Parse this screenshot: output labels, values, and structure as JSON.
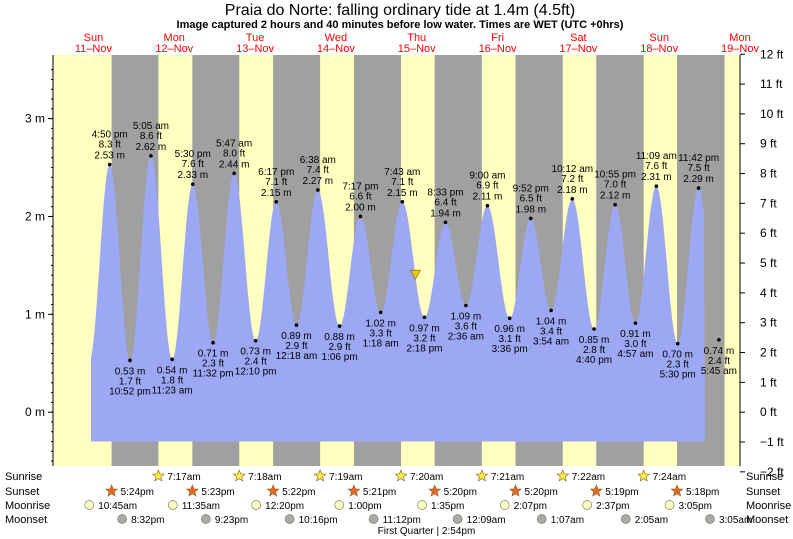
{
  "page": {
    "title": "Praia do Norte: falling  ordinary tide at 1.4m (4.5ft)",
    "subtitle": "Image captured 2 hours and 40 minutes before low water. Times are WET (UTC +0hrs)"
  },
  "chart_data": {
    "type": "area",
    "title": "Praia do Norte: falling  ordinary tide at 1.4m (4.5ft)",
    "time_axis": {
      "start": "2018-11-11T00:00",
      "end": "2018-11-19T12:00"
    },
    "left_axis": {
      "unit": "m",
      "ylim": [
        -0.55,
        3.65
      ],
      "ticks": [
        {
          "v": 0,
          "label": "0 m"
        },
        {
          "v": 1,
          "label": "1 m"
        },
        {
          "v": 2,
          "label": "2 m"
        },
        {
          "v": 3,
          "label": "3 m"
        }
      ]
    },
    "right_axis": {
      "unit": "ft",
      "ticks": [
        {
          "v": -2,
          "label": "−2 ft"
        },
        {
          "v": -1,
          "label": "−1 ft"
        },
        {
          "v": 0,
          "label": "0 ft"
        },
        {
          "v": 1,
          "label": "1 ft"
        },
        {
          "v": 2,
          "label": "2 ft"
        },
        {
          "v": 3,
          "label": "3 ft"
        },
        {
          "v": 4,
          "label": "4 ft"
        },
        {
          "v": 5,
          "label": "5 ft"
        },
        {
          "v": 6,
          "label": "6 ft"
        },
        {
          "v": 7,
          "label": "7 ft"
        },
        {
          "v": 8,
          "label": "8 ft"
        },
        {
          "v": 9,
          "label": "9 ft"
        },
        {
          "v": 10,
          "label": "10 ft"
        },
        {
          "v": 11,
          "label": "11 ft"
        },
        {
          "v": 12,
          "label": "12 ft"
        }
      ]
    },
    "days": [
      {
        "dow": "Sun",
        "date": "11–Nov",
        "t": "2018-11-11T12:00"
      },
      {
        "dow": "Mon",
        "date": "12–Nov",
        "t": "2018-11-12T12:00"
      },
      {
        "dow": "Tue",
        "date": "13–Nov",
        "t": "2018-11-13T12:00"
      },
      {
        "dow": "Wed",
        "date": "14–Nov",
        "t": "2018-11-14T12:00"
      },
      {
        "dow": "Thu",
        "date": "15–Nov",
        "t": "2018-11-15T12:00"
      },
      {
        "dow": "Fri",
        "date": "16–Nov",
        "t": "2018-11-16T12:00"
      },
      {
        "dow": "Sat",
        "date": "17–Nov",
        "t": "2018-11-17T12:00"
      },
      {
        "dow": "Sun",
        "date": "18–Nov",
        "t": "2018-11-18T12:00"
      },
      {
        "dow": "Mon",
        "date": "19–Nov",
        "t": "2018-11-19T12:00"
      }
    ],
    "nights": [
      {
        "start": "2018-11-11T17:24",
        "end": "2018-11-12T07:17"
      },
      {
        "start": "2018-11-12T17:23",
        "end": "2018-11-13T07:18"
      },
      {
        "start": "2018-11-13T17:22",
        "end": "2018-11-14T07:19"
      },
      {
        "start": "2018-11-14T17:21",
        "end": "2018-11-15T07:20"
      },
      {
        "start": "2018-11-15T17:20",
        "end": "2018-11-16T07:21"
      },
      {
        "start": "2018-11-16T17:20",
        "end": "2018-11-17T07:22"
      },
      {
        "start": "2018-11-17T17:19",
        "end": "2018-11-18T07:24"
      },
      {
        "start": "2018-11-18T17:18",
        "end": "2018-11-19T07:25"
      }
    ],
    "tides": [
      {
        "type": "high",
        "t": "2018-11-11T16:50",
        "m": 2.53,
        "time": "4:50 pm",
        "ft": "8.3 ft",
        "mlabel": "2.53 m"
      },
      {
        "type": "low",
        "t": "2018-11-11T22:52",
        "m": 0.53,
        "time": "10:52 pm",
        "ft": "1.7 ft",
        "mlabel": "0.53 m"
      },
      {
        "type": "high",
        "t": "2018-11-12T05:05",
        "m": 2.62,
        "time": "5:05 am",
        "ft": "8.6 ft",
        "mlabel": "2.62 m"
      },
      {
        "type": "low",
        "t": "2018-11-12T11:23",
        "m": 0.54,
        "time": "11:23 am",
        "ft": "1.8 ft",
        "mlabel": "0.54 m"
      },
      {
        "type": "high",
        "t": "2018-11-12T17:30",
        "m": 2.33,
        "time": "5:30 pm",
        "ft": "7.6 ft",
        "mlabel": "2.33 m"
      },
      {
        "type": "low",
        "t": "2018-11-12T23:32",
        "m": 0.71,
        "time": "11:32 pm",
        "ft": "2.3 ft",
        "mlabel": "0.71 m"
      },
      {
        "type": "high",
        "t": "2018-11-13T05:47",
        "m": 2.44,
        "time": "5:47 am",
        "ft": "8.0 ft",
        "mlabel": "2.44 m"
      },
      {
        "type": "low",
        "t": "2018-11-13T12:10",
        "m": 0.73,
        "time": "12:10 pm",
        "ft": "2.4 ft",
        "mlabel": "0.73 m"
      },
      {
        "type": "high",
        "t": "2018-11-13T18:17",
        "m": 2.15,
        "time": "6:17 pm",
        "ft": "7.1 ft",
        "mlabel": "2.15 m"
      },
      {
        "type": "low",
        "t": "2018-11-14T00:18",
        "m": 0.89,
        "time": "12:18 am",
        "ft": "2.9 ft",
        "mlabel": "0.89 m"
      },
      {
        "type": "high",
        "t": "2018-11-14T06:38",
        "m": 2.27,
        "time": "6:38 am",
        "ft": "7.4 ft",
        "mlabel": "2.27 m"
      },
      {
        "type": "low",
        "t": "2018-11-14T13:06",
        "m": 0.88,
        "time": "1:06 pm",
        "ft": "2.9 ft",
        "mlabel": "0.88 m"
      },
      {
        "type": "high",
        "t": "2018-11-14T19:17",
        "m": 2.0,
        "time": "7:17 pm",
        "ft": "6.6 ft",
        "mlabel": "2.00 m"
      },
      {
        "type": "low",
        "t": "2018-11-15T01:18",
        "m": 1.02,
        "time": "1:18 am",
        "ft": "3.3 ft",
        "mlabel": "1.02 m"
      },
      {
        "type": "high",
        "t": "2018-11-15T07:43",
        "m": 2.15,
        "time": "7:43 am",
        "ft": "7.1 ft",
        "mlabel": "2.15 m"
      },
      {
        "type": "low",
        "t": "2018-11-15T14:18",
        "m": 0.97,
        "time": "2:18 pm",
        "ft": "3.2 ft",
        "mlabel": "0.97 m"
      },
      {
        "type": "high",
        "t": "2018-11-15T20:33",
        "m": 1.94,
        "time": "8:33 pm",
        "ft": "6.4 ft",
        "mlabel": "1.94 m"
      },
      {
        "type": "low",
        "t": "2018-11-16T02:36",
        "m": 1.09,
        "time": "2:36 am",
        "ft": "3.6 ft",
        "mlabel": "1.09 m"
      },
      {
        "type": "high",
        "t": "2018-11-16T09:00",
        "m": 2.11,
        "time": "9:00 am",
        "ft": "6.9 ft",
        "mlabel": "2.11 m"
      },
      {
        "type": "low",
        "t": "2018-11-16T15:36",
        "m": 0.96,
        "time": "3:36 pm",
        "ft": "3.1 ft",
        "mlabel": "0.96 m"
      },
      {
        "type": "high",
        "t": "2018-11-16T21:52",
        "m": 1.98,
        "time": "9:52 pm",
        "ft": "6.5 ft",
        "mlabel": "1.98 m"
      },
      {
        "type": "low",
        "t": "2018-11-17T03:54",
        "m": 1.04,
        "time": "3:54 am",
        "ft": "3.4 ft",
        "mlabel": "1.04 m"
      },
      {
        "type": "high",
        "t": "2018-11-17T10:12",
        "m": 2.18,
        "time": "10:12 am",
        "ft": "7.2 ft",
        "mlabel": "2.18 m"
      },
      {
        "type": "low",
        "t": "2018-11-17T16:40",
        "m": 0.85,
        "time": "4:40 pm",
        "ft": "2.8 ft",
        "mlabel": "0.85 m"
      },
      {
        "type": "high",
        "t": "2018-11-17T22:55",
        "m": 2.12,
        "time": "10:55 pm",
        "ft": "7.0 ft",
        "mlabel": "2.12 m"
      },
      {
        "type": "low",
        "t": "2018-11-18T04:57",
        "m": 0.91,
        "time": "4:57 am",
        "ft": "3.0 ft",
        "mlabel": "0.91 m"
      },
      {
        "type": "high",
        "t": "2018-11-18T11:09",
        "m": 2.31,
        "time": "11:09 am",
        "ft": "7.6 ft",
        "mlabel": "2.31 m"
      },
      {
        "type": "low",
        "t": "2018-11-18T17:30",
        "m": 0.7,
        "time": "5:30 pm",
        "ft": "2.3 ft",
        "mlabel": "0.70 m"
      },
      {
        "type": "high",
        "t": "2018-11-18T23:42",
        "m": 2.29,
        "time": "11:42 pm",
        "ft": "7.5 ft",
        "mlabel": "2.29 m"
      },
      {
        "type": "low",
        "t": "2018-11-19T05:45",
        "m": 0.74,
        "time": "5:45 am",
        "ft": "2.4 ft",
        "mlabel": "0.74 m"
      }
    ],
    "current": {
      "t": "2018-11-15T11:38",
      "m": 1.4
    },
    "astro_rows": {
      "labels": [
        "Sunrise",
        "Sunset",
        "Moonrise",
        "Moonset"
      ],
      "sunrise": [
        {
          "t": "2018-11-12T07:17",
          "label": "7:17am"
        },
        {
          "t": "2018-11-13T07:18",
          "label": "7:18am"
        },
        {
          "t": "2018-11-14T07:19",
          "label": "7:19am"
        },
        {
          "t": "2018-11-15T07:20",
          "label": "7:20am"
        },
        {
          "t": "2018-11-16T07:21",
          "label": "7:21am"
        },
        {
          "t": "2018-11-17T07:22",
          "label": "7:22am"
        },
        {
          "t": "2018-11-18T07:24",
          "label": "7:24am"
        }
      ],
      "sunset": [
        {
          "t": "2018-11-11T17:24",
          "label": "5:24pm"
        },
        {
          "t": "2018-11-12T17:23",
          "label": "5:23pm"
        },
        {
          "t": "2018-11-13T17:22",
          "label": "5:22pm"
        },
        {
          "t": "2018-11-14T17:21",
          "label": "5:21pm"
        },
        {
          "t": "2018-11-15T17:20",
          "label": "5:20pm"
        },
        {
          "t": "2018-11-16T17:20",
          "label": "5:20pm"
        },
        {
          "t": "2018-11-17T17:19",
          "label": "5:19pm"
        },
        {
          "t": "2018-11-18T17:18",
          "label": "5:18pm"
        }
      ],
      "moonrise": [
        {
          "t": "2018-11-11T10:45",
          "label": "10:45am"
        },
        {
          "t": "2018-11-12T11:35",
          "label": "11:35am"
        },
        {
          "t": "2018-11-13T12:20",
          "label": "12:20pm"
        },
        {
          "t": "2018-11-14T13:00",
          "label": "1:00pm"
        },
        {
          "t": "2018-11-15T13:35",
          "label": "1:35pm"
        },
        {
          "t": "2018-11-16T14:07",
          "label": "2:07pm"
        },
        {
          "t": "2018-11-17T14:37",
          "label": "2:37pm"
        },
        {
          "t": "2018-11-18T15:05",
          "label": "3:05pm"
        }
      ],
      "moonset": [
        {
          "t": "2018-11-11T20:32",
          "label": "8:32pm"
        },
        {
          "t": "2018-11-12T21:23",
          "label": "9:23pm"
        },
        {
          "t": "2018-11-13T22:16",
          "label": "10:16pm"
        },
        {
          "t": "2018-11-14T23:12",
          "label": "11:12pm"
        },
        {
          "t": "2018-11-16T00:09",
          "label": "12:09am"
        },
        {
          "t": "2018-11-17T01:07",
          "label": "1:07am"
        },
        {
          "t": "2018-11-18T02:05",
          "label": "2:05am"
        },
        {
          "t": "2018-11-19T03:05",
          "label": "3:05am"
        }
      ],
      "moon_phase": {
        "t": "2018-11-15T14:54",
        "label": "First Quarter | 2:54pm"
      }
    },
    "colors": {
      "day_bg": "#ffffc0",
      "night_bg": "#a0a0a0",
      "tide_fill": "#9da8f5",
      "day_text": "#ff0000",
      "sun_star": "#ffee44",
      "sunset_star": "#ee6622",
      "moonrise": "#ffffc8",
      "moonset": "#aaaaaa",
      "current_marker": "#e8cc00"
    }
  }
}
